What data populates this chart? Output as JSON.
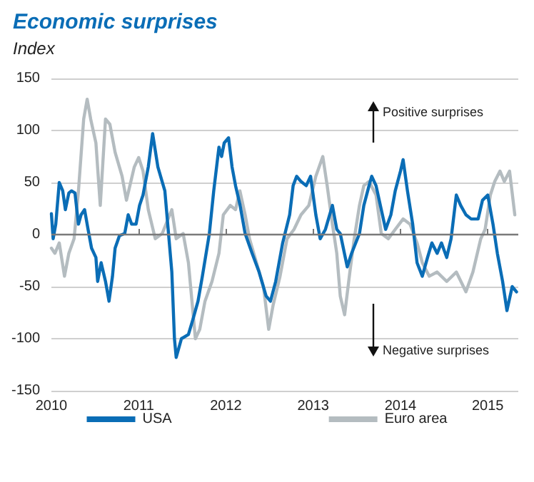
{
  "chart_data": {
    "type": "line",
    "title": "Economic surprises",
    "subtitle": "Index",
    "xlim": [
      2010,
      2015.35
    ],
    "xticks": [
      2010,
      2011,
      2012,
      2013,
      2014,
      2015
    ],
    "ylim": [
      -150,
      150
    ],
    "yticks": [
      -150,
      -100,
      -50,
      0,
      50,
      100,
      150
    ],
    "grid": "y",
    "legend": "bottom",
    "marker": "none",
    "line_style": "solid",
    "ref_lines": [
      {
        "axis": "y",
        "value": 0,
        "color": "#7a7a7a"
      }
    ],
    "annotations": [
      "Positive surprises",
      "Negative surprises"
    ],
    "series": [
      {
        "name": "Euro area",
        "color": "#b4bcc0",
        "x": [
          2010.0,
          2010.04,
          2010.09,
          2010.15,
          2010.2,
          2010.26,
          2010.31,
          2010.37,
          2010.41,
          2010.45,
          2010.51,
          2010.56,
          2010.62,
          2010.67,
          2010.73,
          2010.81,
          2010.86,
          2010.95,
          2011.0,
          2011.05,
          2011.11,
          2011.19,
          2011.27,
          2011.38,
          2011.43,
          2011.51,
          2011.57,
          2011.65,
          2011.7,
          2011.76,
          2011.84,
          2011.92,
          2011.97,
          2012.05,
          2012.11,
          2012.16,
          2012.22,
          2012.27,
          2012.35,
          2012.43,
          2012.49,
          2012.54,
          2012.62,
          2012.7,
          2012.78,
          2012.86,
          2012.95,
          2013.03,
          2013.11,
          2013.16,
          2013.22,
          2013.27,
          2013.31,
          2013.36,
          2013.42,
          2013.47,
          2013.53,
          2013.58,
          2013.64,
          2013.72,
          2013.78,
          2013.86,
          2013.94,
          2014.03,
          2014.11,
          2014.19,
          2014.25,
          2014.33,
          2014.42,
          2014.53,
          2014.64,
          2014.75,
          2014.83,
          2014.92,
          2014.97,
          2015.03,
          2015.08,
          2015.14,
          2015.19,
          2015.25,
          2015.31
        ],
        "values": [
          -13,
          -18,
          -8,
          -40,
          -18,
          -4,
          42,
          111,
          130,
          111,
          88,
          28,
          111,
          106,
          79,
          56,
          33,
          65,
          74,
          61,
          24,
          -4,
          1,
          24,
          -4,
          1,
          -27,
          -100,
          -91,
          -64,
          -45,
          -18,
          19,
          28,
          24,
          42,
          19,
          -4,
          -27,
          -50,
          -91,
          -68,
          -40,
          -4,
          5,
          19,
          28,
          56,
          75,
          47,
          10,
          -18,
          -59,
          -77,
          -36,
          -4,
          28,
          47,
          51,
          38,
          1,
          -4,
          5,
          15,
          10,
          -8,
          -27,
          -40,
          -36,
          -45,
          -36,
          -55,
          -36,
          -4,
          5,
          38,
          51,
          61,
          51,
          61,
          19
        ]
      },
      {
        "name": "USA",
        "color": "#0a6db6",
        "x": [
          2010.0,
          2010.02,
          2010.05,
          2010.09,
          2010.13,
          2010.16,
          2010.2,
          2010.23,
          2010.27,
          2010.31,
          2010.34,
          2010.38,
          2010.42,
          2010.46,
          2010.51,
          2010.53,
          2010.57,
          2010.62,
          2010.66,
          2010.7,
          2010.73,
          2010.78,
          2010.84,
          2010.88,
          2010.92,
          2010.97,
          2011.01,
          2011.05,
          2011.11,
          2011.16,
          2011.22,
          2011.3,
          2011.38,
          2011.41,
          2011.43,
          2011.49,
          2011.57,
          2011.62,
          2011.68,
          2011.73,
          2011.81,
          2011.86,
          2011.92,
          2011.95,
          2011.98,
          2012.03,
          2012.07,
          2012.11,
          2012.16,
          2012.22,
          2012.3,
          2012.38,
          2012.46,
          2012.51,
          2012.57,
          2012.65,
          2012.73,
          2012.77,
          2012.81,
          2012.86,
          2012.92,
          2012.97,
          2013.03,
          2013.08,
          2013.14,
          2013.22,
          2013.27,
          2013.31,
          2013.39,
          2013.44,
          2013.53,
          2013.58,
          2013.64,
          2013.67,
          2013.72,
          2013.78,
          2013.83,
          2013.89,
          2013.94,
          2014.0,
          2014.03,
          2014.08,
          2014.14,
          2014.19,
          2014.25,
          2014.31,
          2014.36,
          2014.42,
          2014.47,
          2014.53,
          2014.58,
          2014.64,
          2014.69,
          2014.75,
          2014.81,
          2014.89,
          2014.94,
          2015.0,
          2015.06,
          2015.11,
          2015.17,
          2015.22,
          2015.28,
          2015.33
        ],
        "values": [
          20,
          -4,
          10,
          50,
          42,
          24,
          40,
          42,
          40,
          10,
          19,
          24,
          5,
          -13,
          -22,
          -45,
          -27,
          -45,
          -64,
          -40,
          -13,
          -1,
          1,
          19,
          10,
          10,
          28,
          38,
          65,
          97,
          65,
          42,
          -36,
          -100,
          -118,
          -100,
          -96,
          -82,
          -64,
          -40,
          1,
          42,
          84,
          75,
          88,
          93,
          65,
          47,
          29,
          1,
          -18,
          -36,
          -59,
          -64,
          -45,
          -8,
          19,
          47,
          56,
          51,
          47,
          56,
          19,
          -4,
          5,
          28,
          5,
          1,
          -31,
          -18,
          1,
          28,
          47,
          56,
          47,
          24,
          5,
          19,
          42,
          61,
          72,
          42,
          10,
          -27,
          -40,
          -22,
          -8,
          -18,
          -8,
          -22,
          -4,
          38,
          28,
          19,
          15,
          15,
          33,
          38,
          10,
          -18,
          -45,
          -73,
          -50,
          -55
        ]
      }
    ]
  }
}
